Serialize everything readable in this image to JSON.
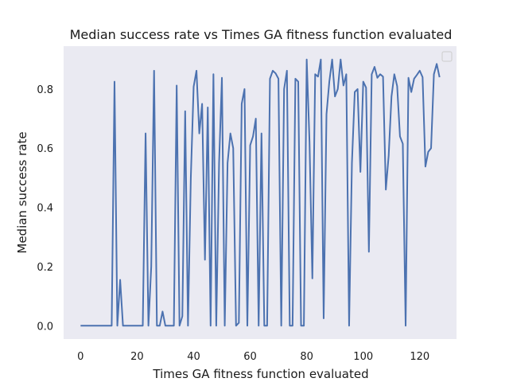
{
  "chart_data": {
    "type": "line",
    "title": "Median success rate vs Times GA fitness function evaluated",
    "xlabel": "Times GA fitness function evaluated",
    "ylabel": "Median success rate",
    "xlim": [
      -6,
      133
    ],
    "ylim": [
      -0.045,
      0.945
    ],
    "xticks": [
      0,
      20,
      40,
      60,
      80,
      100,
      120
    ],
    "yticks": [
      0.0,
      0.2,
      0.4,
      0.6,
      0.8
    ],
    "grid": false,
    "legend": "top-right (empty)",
    "colors": {
      "background": "#eaeaf2",
      "line": "#4c72b0"
    },
    "series": [
      {
        "x": [
          0,
          1,
          2,
          3,
          4,
          5,
          6,
          7,
          8,
          9,
          10,
          11,
          12,
          13,
          14,
          15,
          16,
          17,
          18,
          19,
          20,
          21,
          22,
          23,
          24,
          25,
          26,
          27,
          28,
          29,
          30,
          31,
          32,
          33,
          34,
          35,
          36,
          37,
          38,
          39,
          40,
          41,
          42,
          43,
          44,
          45,
          46,
          47,
          48,
          49,
          50,
          51,
          52,
          53,
          54,
          55,
          56,
          57,
          58,
          59,
          60,
          61,
          62,
          63,
          64,
          65,
          66,
          67,
          68,
          69,
          70,
          71,
          72,
          73,
          74,
          75,
          76,
          77,
          78,
          79,
          80,
          81,
          82,
          83,
          84,
          85,
          86,
          87,
          88,
          89,
          90,
          91,
          92,
          93,
          94,
          95,
          96,
          97,
          98,
          99,
          100,
          101,
          102,
          103,
          104,
          105,
          106,
          107,
          108,
          109,
          110,
          111,
          112,
          113,
          114,
          115,
          116,
          117,
          118,
          119,
          120,
          121,
          122,
          123,
          124,
          125,
          126,
          127
        ],
        "values": [
          0,
          0,
          0,
          0,
          0,
          0,
          0,
          0,
          0,
          0,
          0,
          0,
          0.825,
          0,
          0.155,
          0,
          0,
          0,
          0,
          0,
          0,
          0,
          0,
          0.65,
          0,
          0.2,
          0.862,
          0,
          0,
          0.048,
          0,
          0,
          0,
          0,
          0.812,
          0,
          0.032,
          0.725,
          0,
          0.5,
          0.808,
          0.862,
          0.65,
          0.75,
          0.223,
          0.738,
          0,
          0.85,
          0,
          0.55,
          0.838,
          0,
          0.55,
          0.65,
          0.6,
          0,
          0.01,
          0.75,
          0.8,
          0,
          0.61,
          0.64,
          0.7,
          0,
          0.65,
          0,
          0,
          0.835,
          0.862,
          0.853,
          0.835,
          0,
          0.8,
          0.862,
          0,
          0,
          0.835,
          0.825,
          0,
          0,
          0.9,
          0.62,
          0.16,
          0.85,
          0.842,
          0.9,
          0.025,
          0.715,
          0.825,
          0.9,
          0.775,
          0.8,
          0.9,
          0.812,
          0.85,
          0,
          0.55,
          0.79,
          0.8,
          0.52,
          0.825,
          0.805,
          0.25,
          0.85,
          0.875,
          0.838,
          0.85,
          0.842,
          0.46,
          0.575,
          0.775,
          0.85,
          0.81,
          0.64,
          0.615,
          0,
          0.838,
          0.79,
          0.835,
          0.848,
          0.862,
          0.84,
          0.538,
          0.588,
          0.6,
          0.85,
          0.885,
          0.84
        ]
      }
    ]
  }
}
